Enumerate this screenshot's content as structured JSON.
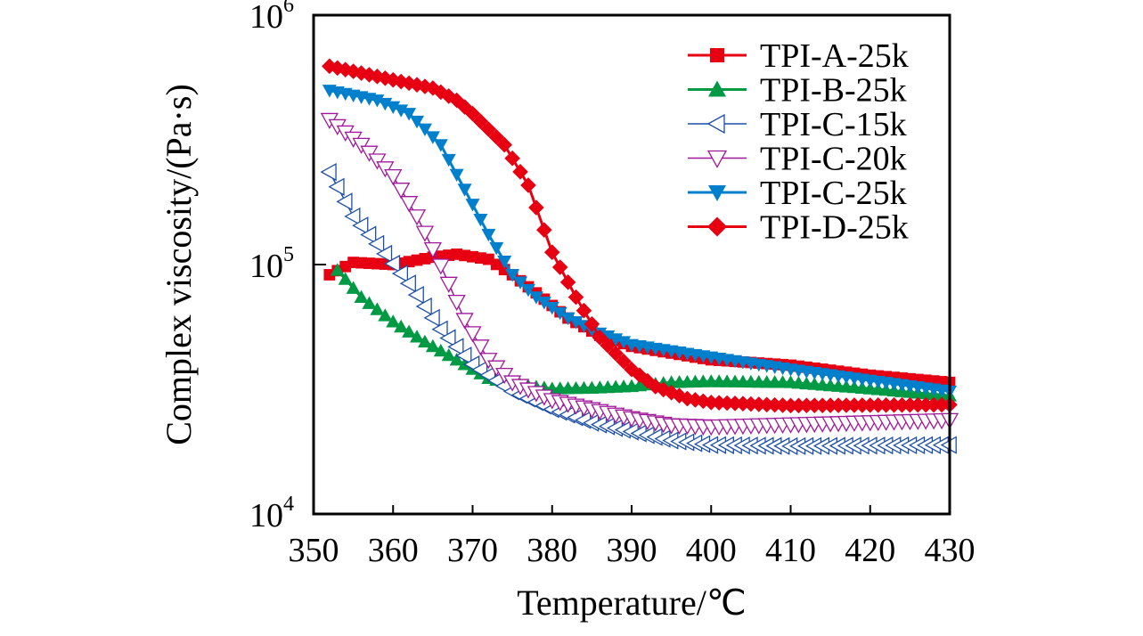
{
  "chart_data": {
    "type": "line",
    "title": "",
    "xlabel": "Temperature/℃",
    "ylabel": "Complex viscosity/(Pa·s)",
    "xlim": [
      350,
      430
    ],
    "ylim": [
      10000,
      1000000
    ],
    "yscale": "log",
    "xticks": [
      "350",
      "360",
      "370",
      "380",
      "390",
      "400",
      "410",
      "420",
      "430"
    ],
    "yticks": [
      {
        "base": "10",
        "exp": "4",
        "value": 10000
      },
      {
        "base": "10",
        "exp": "5",
        "value": 100000
      },
      {
        "base": "10",
        "exp": "6",
        "value": 1000000
      }
    ],
    "grid": false,
    "legend_position": "top-right",
    "series": [
      {
        "name": "TPI-A-25k",
        "color": "#e60012",
        "marker": "square",
        "filled": true,
        "x": [
          352,
          355,
          360,
          365,
          368,
          372,
          375,
          378,
          382,
          386,
          390,
          400,
          410,
          420,
          430
        ],
        "y": [
          91000,
          102000,
          100000,
          107000,
          110000,
          105000,
          91000,
          77000,
          61000,
          52000,
          47000,
          41500,
          39500,
          36000,
          33700
        ]
      },
      {
        "name": "TPI-B-25k",
        "color": "#009944",
        "marker": "triangle-up",
        "filled": true,
        "x": [
          353,
          356,
          360,
          364,
          368,
          372,
          376,
          380,
          385,
          390,
          395,
          400,
          410,
          420,
          430
        ],
        "y": [
          95000,
          74000,
          59000,
          49000,
          41500,
          35000,
          32900,
          31800,
          32000,
          32500,
          33700,
          34000,
          33700,
          31800,
          29800
        ]
      },
      {
        "name": "TPI-C-15k",
        "color": "#1d4fa8",
        "marker": "triangle-left",
        "filled": false,
        "x": [
          352,
          355,
          358,
          362,
          366,
          370,
          375,
          380,
          385,
          390,
          395,
          400,
          410,
          430
        ],
        "y": [
          235000,
          156000,
          121000,
          84000,
          55000,
          39800,
          31000,
          26300,
          23200,
          21400,
          19700,
          18900,
          18700,
          18900
        ]
      },
      {
        "name": "TPI-C-20k",
        "color": "#a0179a",
        "marker": "triangle-down",
        "filled": false,
        "x": [
          352,
          356,
          360,
          363,
          366,
          369,
          372,
          375,
          380,
          385,
          390,
          395,
          400,
          430
        ],
        "y": [
          380000,
          302000,
          226000,
          156000,
          99000,
          60000,
          41500,
          33700,
          28600,
          26300,
          24200,
          22700,
          22400,
          23800
        ]
      },
      {
        "name": "TPI-C-25k",
        "color": "#0080cc",
        "marker": "triangle-down",
        "filled": true,
        "x": [
          352,
          358,
          362,
          366,
          369,
          372,
          375,
          378,
          382,
          386,
          390,
          400,
          410,
          420,
          430
        ],
        "y": [
          499000,
          456000,
          403000,
          302000,
          200000,
          132000,
          91000,
          74000,
          61000,
          53000,
          47700,
          42500,
          38000,
          34300,
          31000
        ]
      },
      {
        "name": "TPI-D-25k",
        "color": "#e60012",
        "marker": "diamond",
        "filled": true,
        "x": [
          352,
          360,
          365,
          368,
          370,
          374,
          377,
          380,
          383,
          386,
          390,
          393,
          397,
          400,
          410,
          430
        ],
        "y": [
          624000,
          550000,
          510000,
          456000,
          403000,
          302000,
          208000,
          112000,
          74000,
          51000,
          38000,
          32400,
          29000,
          28000,
          27200,
          27400
        ]
      }
    ]
  }
}
